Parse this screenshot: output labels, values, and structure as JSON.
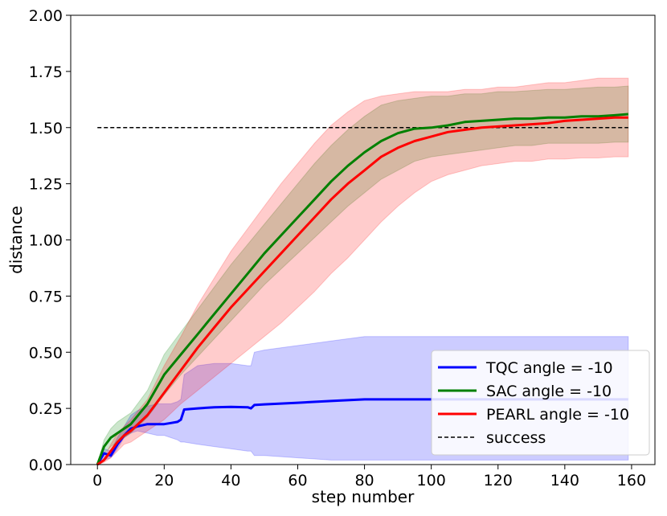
{
  "chart_data": {
    "type": "line",
    "title": "",
    "xlabel": "step number",
    "ylabel": "distance",
    "xlim": [
      -8,
      167
    ],
    "ylim": [
      0,
      2
    ],
    "xticks": [
      {
        "value": 0,
        "label": "0"
      },
      {
        "value": 20,
        "label": "20"
      },
      {
        "value": 40,
        "label": "40"
      },
      {
        "value": 60,
        "label": "60"
      },
      {
        "value": 80,
        "label": "80"
      },
      {
        "value": 100,
        "label": "100"
      },
      {
        "value": 120,
        "label": "120"
      },
      {
        "value": 140,
        "label": "140"
      },
      {
        "value": 160,
        "label": "160"
      }
    ],
    "yticks": [
      {
        "value": 0,
        "label": "0.00"
      },
      {
        "value": 0.25,
        "label": "0.25"
      },
      {
        "value": 0.5,
        "label": "0.50"
      },
      {
        "value": 0.75,
        "label": "0.75"
      },
      {
        "value": 1.0,
        "label": "1.00"
      },
      {
        "value": 1.25,
        "label": "1.25"
      },
      {
        "value": 1.5,
        "label": "1.50"
      },
      {
        "value": 1.75,
        "label": "1.75"
      },
      {
        "value": 2.0,
        "label": "2.00"
      }
    ],
    "grid": false,
    "legend_position": "lower-right",
    "series": [
      {
        "name": "TQC angle = -10",
        "color": "#0000ff",
        "fill_color": "#0000ff",
        "x": [
          0,
          2,
          4,
          6,
          8,
          10,
          12,
          15,
          18,
          20,
          22,
          24,
          25,
          26,
          30,
          35,
          40,
          45,
          46,
          47,
          50,
          60,
          70,
          80,
          90,
          100,
          110,
          120,
          130,
          140,
          150,
          159
        ],
        "y": [
          0,
          0.05,
          0.04,
          0.09,
          0.13,
          0.16,
          0.17,
          0.18,
          0.18,
          0.18,
          0.185,
          0.19,
          0.2,
          0.245,
          0.25,
          0.255,
          0.257,
          0.255,
          0.25,
          0.265,
          0.268,
          0.275,
          0.283,
          0.29,
          0.29,
          0.29,
          0.29,
          0.29,
          0.29,
          0.29,
          0.29,
          0.29
        ],
        "lower": [
          0,
          0.02,
          0.03,
          0.07,
          0.12,
          0.14,
          0.15,
          0.14,
          0.13,
          0.13,
          0.12,
          0.11,
          0.1,
          0.1,
          0.09,
          0.08,
          0.07,
          0.06,
          0.06,
          0.04,
          0.04,
          0.03,
          0.02,
          0.02,
          0.02,
          0.02,
          0.02,
          0.02,
          0.02,
          0.02,
          0.02,
          0.02
        ],
        "upper": [
          0,
          0.07,
          0.06,
          0.12,
          0.17,
          0.22,
          0.24,
          0.26,
          0.27,
          0.27,
          0.27,
          0.28,
          0.29,
          0.4,
          0.44,
          0.45,
          0.45,
          0.44,
          0.44,
          0.5,
          0.51,
          0.53,
          0.55,
          0.57,
          0.57,
          0.57,
          0.57,
          0.57,
          0.57,
          0.57,
          0.57,
          0.57
        ]
      },
      {
        "name": "SAC angle = -10",
        "color": "#008000",
        "fill_color": "#008000",
        "x": [
          0,
          2,
          4,
          6,
          8,
          10,
          15,
          20,
          25,
          30,
          35,
          40,
          45,
          50,
          55,
          60,
          65,
          70,
          75,
          80,
          85,
          90,
          95,
          100,
          105,
          110,
          115,
          120,
          125,
          130,
          135,
          140,
          145,
          150,
          155,
          159
        ],
        "y": [
          0,
          0.08,
          0.12,
          0.14,
          0.16,
          0.18,
          0.27,
          0.4,
          0.49,
          0.58,
          0.67,
          0.76,
          0.85,
          0.94,
          1.02,
          1.1,
          1.18,
          1.26,
          1.33,
          1.39,
          1.44,
          1.475,
          1.495,
          1.5,
          1.51,
          1.525,
          1.53,
          1.535,
          1.54,
          1.54,
          1.545,
          1.545,
          1.55,
          1.55,
          1.555,
          1.56
        ],
        "lower": [
          0,
          0.05,
          0.08,
          0.1,
          0.12,
          0.14,
          0.21,
          0.31,
          0.4,
          0.48,
          0.56,
          0.64,
          0.72,
          0.8,
          0.87,
          0.94,
          1.01,
          1.08,
          1.15,
          1.21,
          1.27,
          1.31,
          1.35,
          1.37,
          1.38,
          1.39,
          1.4,
          1.41,
          1.42,
          1.42,
          1.43,
          1.43,
          1.43,
          1.43,
          1.435,
          1.435
        ],
        "upper": [
          0,
          0.11,
          0.16,
          0.19,
          0.21,
          0.23,
          0.33,
          0.49,
          0.59,
          0.69,
          0.79,
          0.89,
          0.98,
          1.07,
          1.16,
          1.25,
          1.34,
          1.42,
          1.49,
          1.55,
          1.6,
          1.62,
          1.63,
          1.64,
          1.64,
          1.65,
          1.65,
          1.66,
          1.66,
          1.665,
          1.67,
          1.67,
          1.675,
          1.68,
          1.68,
          1.685
        ]
      },
      {
        "name": "PEARL angle = -10",
        "color": "#ff0000",
        "fill_color": "#ff0000",
        "x": [
          0,
          2,
          4,
          6,
          8,
          10,
          15,
          20,
          25,
          30,
          35,
          40,
          45,
          50,
          55,
          60,
          65,
          70,
          75,
          80,
          85,
          90,
          95,
          100,
          105,
          110,
          115,
          120,
          125,
          130,
          135,
          140,
          145,
          150,
          155,
          159
        ],
        "y": [
          0,
          0.02,
          0.06,
          0.1,
          0.13,
          0.15,
          0.22,
          0.32,
          0.42,
          0.52,
          0.61,
          0.7,
          0.78,
          0.86,
          0.94,
          1.02,
          1.1,
          1.18,
          1.25,
          1.31,
          1.37,
          1.41,
          1.44,
          1.46,
          1.48,
          1.49,
          1.5,
          1.505,
          1.51,
          1.515,
          1.52,
          1.53,
          1.535,
          1.54,
          1.545,
          1.545
        ],
        "lower": [
          0,
          0.01,
          0.03,
          0.06,
          0.09,
          0.1,
          0.15,
          0.2,
          0.27,
          0.33,
          0.39,
          0.45,
          0.51,
          0.57,
          0.63,
          0.7,
          0.77,
          0.85,
          0.92,
          1.0,
          1.08,
          1.15,
          1.21,
          1.26,
          1.29,
          1.31,
          1.33,
          1.34,
          1.35,
          1.35,
          1.36,
          1.36,
          1.365,
          1.365,
          1.37,
          1.37
        ],
        "upper": [
          0,
          0.03,
          0.09,
          0.14,
          0.17,
          0.2,
          0.29,
          0.44,
          0.57,
          0.71,
          0.83,
          0.95,
          1.05,
          1.15,
          1.25,
          1.34,
          1.43,
          1.51,
          1.57,
          1.62,
          1.64,
          1.65,
          1.66,
          1.66,
          1.66,
          1.67,
          1.67,
          1.68,
          1.68,
          1.69,
          1.7,
          1.7,
          1.71,
          1.72,
          1.72,
          1.72
        ]
      }
    ],
    "reference_lines": [
      {
        "name": "success",
        "y": 1.5,
        "x_range": [
          0,
          159
        ],
        "color": "#000000",
        "style": "dashed"
      }
    ],
    "legend_entries": [
      {
        "label": "TQC angle = -10",
        "color": "#0000ff",
        "style": "solid"
      },
      {
        "label": "SAC angle = -10",
        "color": "#008000",
        "style": "solid"
      },
      {
        "label": "PEARL angle = -10",
        "color": "#ff0000",
        "style": "solid"
      },
      {
        "label": "success",
        "color": "#000000",
        "style": "dashed"
      }
    ]
  }
}
